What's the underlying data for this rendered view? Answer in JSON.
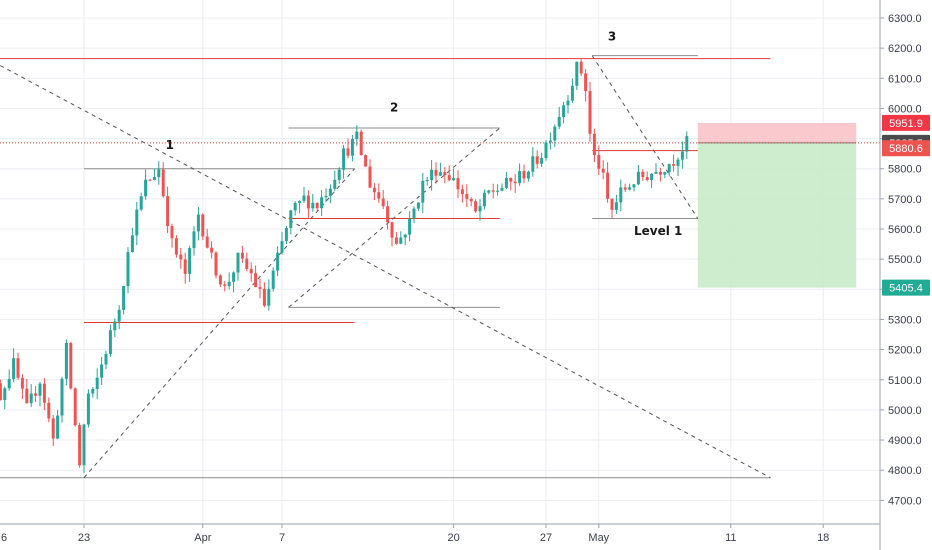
{
  "chart_data": {
    "type": "candlestick",
    "title": "",
    "xlabel": "",
    "ylabel": "",
    "ylim": [
      4580,
      6380
    ],
    "y_ticks": [
      4700,
      4800,
      4900,
      5000,
      5100,
      5200,
      5300,
      5400,
      5500,
      5600,
      5700,
      5800,
      5900,
      6000,
      6100,
      6200,
      6300
    ],
    "y_tick_labels": [
      "4700.0",
      "4800.0",
      "4900.0",
      "5000.0",
      "5100.0",
      "5200.0",
      "5300.0",
      "5400.0",
      "5500.0",
      "5600.0",
      "5700.0",
      "5800.0",
      "5900.0",
      "6000.0",
      "6100.0",
      "6200.0",
      "6300.0"
    ],
    "x_ticks": [
      {
        "label": "6",
        "day": -17
      },
      {
        "label": "23",
        "day": 0
      },
      {
        "label": "Apr",
        "day": 9
      },
      {
        "label": "7",
        "day": 15
      },
      {
        "label": "20",
        "day": 28
      },
      {
        "label": "27",
        "day": 35
      },
      {
        "label": "May",
        "day": 39
      },
      {
        "label": "11",
        "day": 49
      },
      {
        "label": "18",
        "day": 56
      }
    ],
    "grid": true,
    "colors": {
      "up": "#26a69a",
      "down": "#ef5350",
      "red_line": "#e53935",
      "gray_line": "#8c8c8c",
      "dashed": "#555555",
      "stop_zone": "#f8bfc4",
      "target_zone": "#c8ebc9",
      "grid": "#eceef2"
    },
    "price_path": [
      {
        "day": -8,
        "price": 5650
      },
      {
        "day": -7,
        "price": 5200
      },
      {
        "day": -6,
        "price": 5050
      },
      {
        "day": -5,
        "price": 5150
      },
      {
        "day": -4,
        "price": 5000
      },
      {
        "day": -3,
        "price": 5100
      },
      {
        "day": -2,
        "price": 4900
      },
      {
        "day": -1,
        "price": 5200
      },
      {
        "day": 0,
        "price": 4820
      },
      {
        "day": 0.6,
        "price": 5050
      },
      {
        "day": 1,
        "price": 5050
      },
      {
        "day": 2,
        "price": 5200
      },
      {
        "day": 3,
        "price": 5350
      },
      {
        "day": 4,
        "price": 5600
      },
      {
        "day": 5,
        "price": 5750
      },
      {
        "day": 6,
        "price": 5800
      },
      {
        "day": 7,
        "price": 5550
      },
      {
        "day": 8,
        "price": 5450
      },
      {
        "day": 9,
        "price": 5650
      },
      {
        "day": 10,
        "price": 5500
      },
      {
        "day": 11,
        "price": 5400
      },
      {
        "day": 12,
        "price": 5500
      },
      {
        "day": 13,
        "price": 5450
      },
      {
        "day": 14,
        "price": 5350
      },
      {
        "day": 15,
        "price": 5500
      },
      {
        "day": 16,
        "price": 5650
      },
      {
        "day": 17,
        "price": 5700
      },
      {
        "day": 18,
        "price": 5680
      },
      {
        "day": 19,
        "price": 5750
      },
      {
        "day": 20,
        "price": 5850
      },
      {
        "day": 21,
        "price": 5900
      },
      {
        "day": 22,
        "price": 5750
      },
      {
        "day": 23,
        "price": 5680
      },
      {
        "day": 24,
        "price": 5550
      },
      {
        "day": 25,
        "price": 5620
      },
      {
        "day": 26,
        "price": 5750
      },
      {
        "day": 27,
        "price": 5800
      },
      {
        "day": 28,
        "price": 5780
      },
      {
        "day": 29,
        "price": 5720
      },
      {
        "day": 30,
        "price": 5650
      },
      {
        "day": 31,
        "price": 5720
      },
      {
        "day": 32,
        "price": 5740
      },
      {
        "day": 33,
        "price": 5760
      },
      {
        "day": 34,
        "price": 5800
      },
      {
        "day": 35,
        "price": 5850
      },
      {
        "day": 36,
        "price": 5950
      },
      {
        "day": 37,
        "price": 6050
      },
      {
        "day": 37.8,
        "price": 6150
      },
      {
        "day": 38.3,
        "price": 6080
      },
      {
        "day": 38.8,
        "price": 5850
      },
      {
        "day": 39.5,
        "price": 5800
      },
      {
        "day": 40.2,
        "price": 5650
      },
      {
        "day": 41,
        "price": 5720
      },
      {
        "day": 42,
        "price": 5760
      },
      {
        "day": 43,
        "price": 5780
      },
      {
        "day": 44,
        "price": 5800
      },
      {
        "day": 45,
        "price": 5830
      },
      {
        "day": 46,
        "price": 5885
      }
    ],
    "horizontal_levels": [
      {
        "type": "red",
        "price": 6165,
        "x1": -17.5,
        "x2": 52
      },
      {
        "type": "gray",
        "price": 6175,
        "x1": 38.5,
        "x2": 46.5
      },
      {
        "type": "gray",
        "price": 5800,
        "x1": 0,
        "x2": 20.5
      },
      {
        "type": "gray",
        "price": 5935,
        "x1": 15.5,
        "x2": 31.5
      },
      {
        "type": "red",
        "price": 5635,
        "x1": 15.5,
        "x2": 31.5
      },
      {
        "type": "gray",
        "price": 5340,
        "x1": 15.5,
        "x2": 31.5
      },
      {
        "type": "red",
        "price": 5290,
        "x1": 0,
        "x2": 20.5
      },
      {
        "type": "red",
        "price": 5860,
        "x1": 38.5,
        "x2": 46.5
      },
      {
        "type": "gray",
        "price": 5635,
        "x1": 38.5,
        "x2": 46.5
      },
      {
        "type": "gray",
        "price": 4775,
        "x1": -17.5,
        "x2": 52
      }
    ],
    "dashed_lines": [
      {
        "x1": -16.5,
        "y1": 6380,
        "x2": 52,
        "y2": 4775
      },
      {
        "x1": 0,
        "y1": 4775,
        "x2": 20.5,
        "y2": 5800
      },
      {
        "x1": 15.5,
        "y1": 5340,
        "x2": 31.5,
        "y2": 5935
      },
      {
        "x1": 38.5,
        "y1": 6175,
        "x2": 46.5,
        "y2": 5635
      }
    ],
    "current_price_line": 5885.5,
    "position": {
      "x1": 46.5,
      "x2": 58.5,
      "entry": 5885.5,
      "stop": 5951.9,
      "target": 5405.4
    },
    "annotations": [
      {
        "text": "1",
        "day": 6.5,
        "price": 5865
      },
      {
        "text": "2",
        "day": 23.5,
        "price": 5990
      },
      {
        "text": "3",
        "day": 40,
        "price": 6225
      },
      {
        "text": "Level 1",
        "day": 43.5,
        "price": 5580
      }
    ],
    "price_tags": [
      {
        "label": "5951.9",
        "price": 5951.9,
        "color": "#f23645"
      },
      {
        "label": "5885.5",
        "price": 5885.5,
        "color": "#4a4a4a"
      },
      {
        "label": "5880.6",
        "price": 5868,
        "color": "#ef5350"
      },
      {
        "label": "5405.4",
        "price": 5405.4,
        "color": "#22ab94"
      }
    ]
  }
}
